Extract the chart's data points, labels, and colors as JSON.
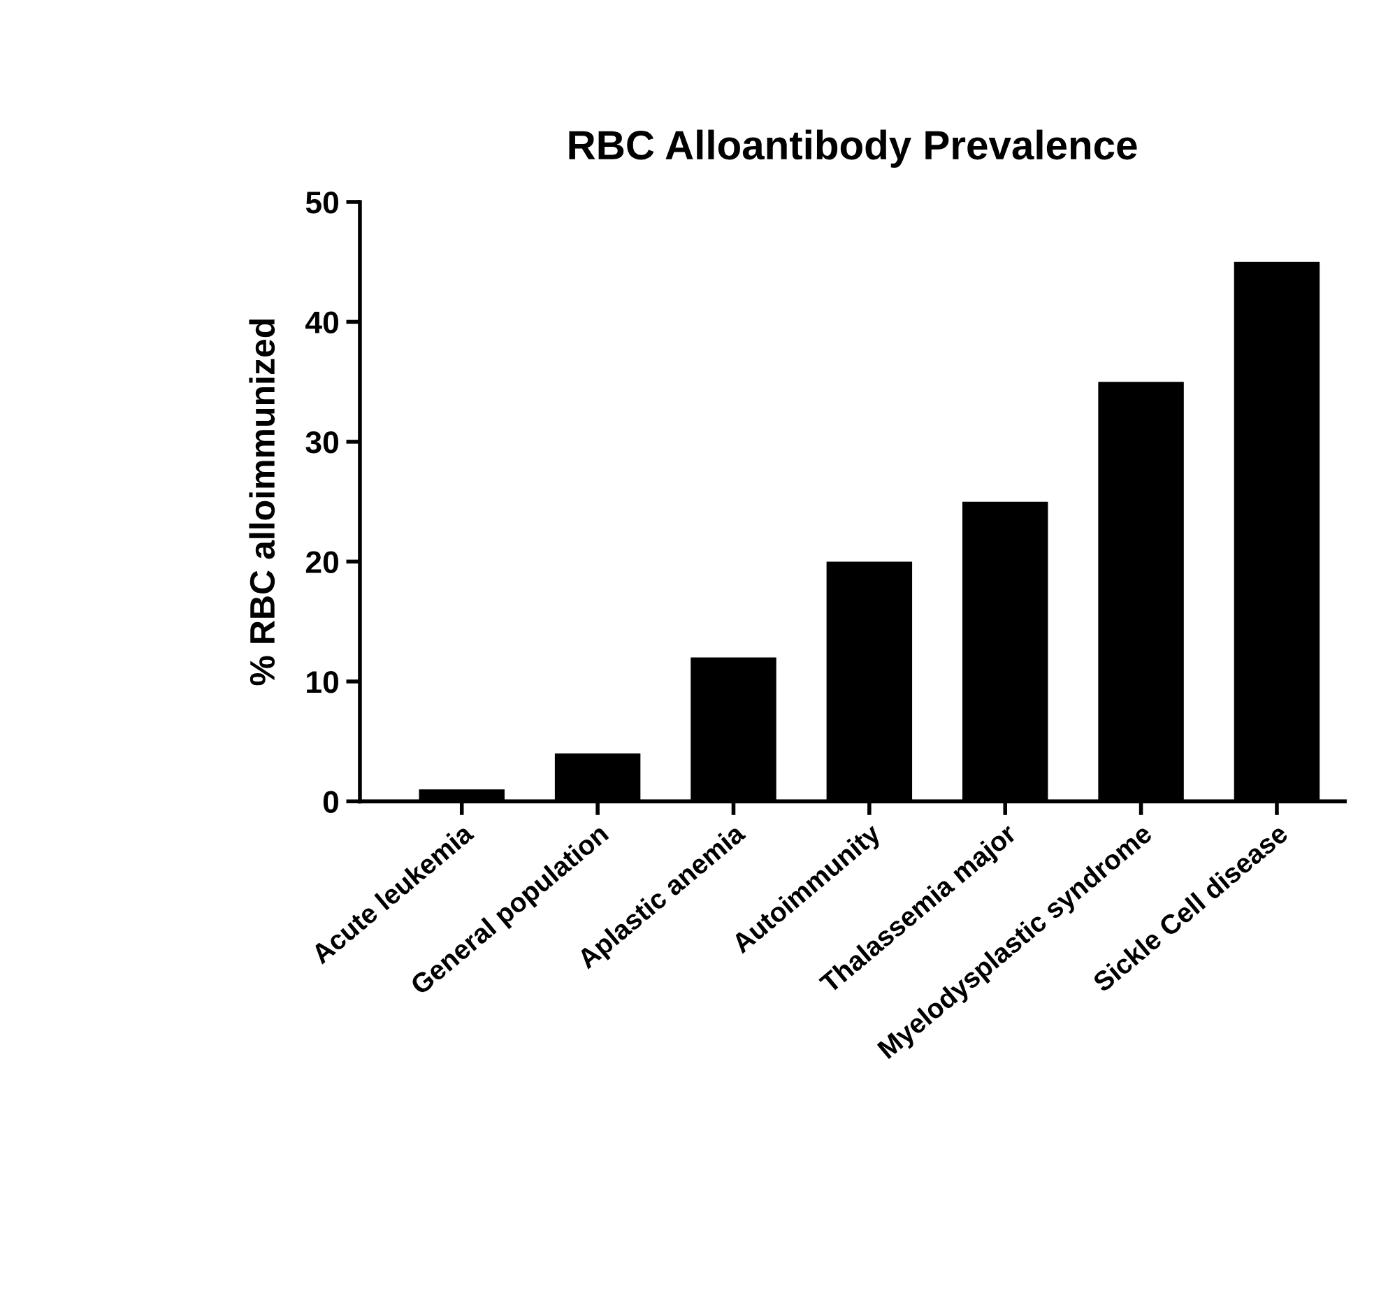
{
  "chart_data": {
    "type": "bar",
    "title": "RBC Alloantibody Prevalence",
    "ylabel": "% RBC alloimmunized",
    "categories": [
      "Acute leukemia",
      "General population",
      "Aplastic anemia",
      "Autoimmunity",
      "Thalassemia major",
      "Myelodysplastic syndrome",
      "Sickle Cell disease"
    ],
    "values": [
      1,
      4,
      12,
      20,
      25,
      35,
      45
    ],
    "color": "#000000",
    "ylim": [
      0,
      50
    ],
    "yticks": [
      0,
      10,
      20,
      30,
      40,
      50
    ],
    "grid": false,
    "legend": false
  }
}
